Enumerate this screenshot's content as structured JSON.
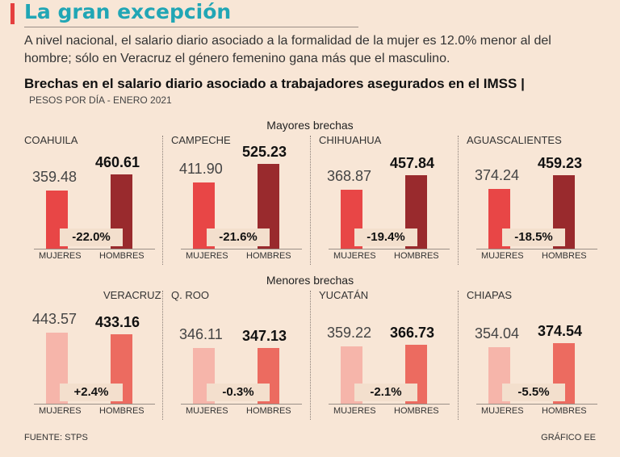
{
  "header": {
    "title": "La gran excepción",
    "subtitle": "A nivel nacional, el salario diario asociado a la formalidad de la mujer es 12.0% menor al del hombre; sólo en Veracruz el género femenino gana más que el masculino.",
    "chart_heading": "Brechas en el salario diario asociado a trabajadores asegurados en el IMSS |",
    "units": "PESOS POR DÍA - ENERO 2021"
  },
  "sections": {
    "top": "Mayores brechas",
    "bottom": "Menores brechas"
  },
  "footer": {
    "source": "FUENTE: STPS",
    "credit": "GRÁFICO EE"
  },
  "colors": {
    "background": "#f8e6d6",
    "accent": "#e5403f",
    "title": "#21a6b5",
    "top_women": "#e84646",
    "top_men": "#992a2d",
    "bottom_women": "#f6b5aa",
    "bottom_men": "#ec6b60"
  },
  "chart_data": {
    "type": "bar",
    "categories": [
      "MUJERES",
      "HOMBRES"
    ],
    "unit": "PESOS POR DÍA",
    "panels": [
      {
        "state": "COAHUILA",
        "group": "Mayores brechas",
        "values": [
          359.48,
          460.61
        ],
        "labels": [
          "359.48",
          "460.61"
        ],
        "gap": "-22.0%"
      },
      {
        "state": "CAMPECHE",
        "group": "Mayores brechas",
        "values": [
          411.9,
          525.23
        ],
        "labels": [
          "411.90",
          "525.23"
        ],
        "gap": "-21.6%"
      },
      {
        "state": "CHIHUAHUA",
        "group": "Mayores brechas",
        "values": [
          368.87,
          457.84
        ],
        "labels": [
          "368.87",
          "457.84"
        ],
        "gap": "-19.4%"
      },
      {
        "state": "AGUASCALIENTES",
        "group": "Mayores brechas",
        "values": [
          374.24,
          459.23
        ],
        "labels": [
          "374.24",
          "459.23"
        ],
        "gap": "-18.5%"
      },
      {
        "state": "VERACRUZ",
        "group": "Menores brechas",
        "values": [
          443.57,
          433.16
        ],
        "labels": [
          "443.57",
          "433.16"
        ],
        "gap": "+2.4%"
      },
      {
        "state": "Q. ROO",
        "group": "Menores brechas",
        "values": [
          346.11,
          347.13
        ],
        "labels": [
          "346.11",
          "347.13"
        ],
        "gap": "-0.3%"
      },
      {
        "state": "YUCATÁN",
        "group": "Menores brechas",
        "values": [
          359.22,
          366.73
        ],
        "labels": [
          "359.22",
          "366.73"
        ],
        "gap": "-2.1%"
      },
      {
        "state": "CHIAPAS",
        "group": "Menores brechas",
        "values": [
          354.04,
          374.54
        ],
        "labels": [
          "354.04",
          "374.54"
        ],
        "gap": "-5.5%"
      }
    ]
  }
}
